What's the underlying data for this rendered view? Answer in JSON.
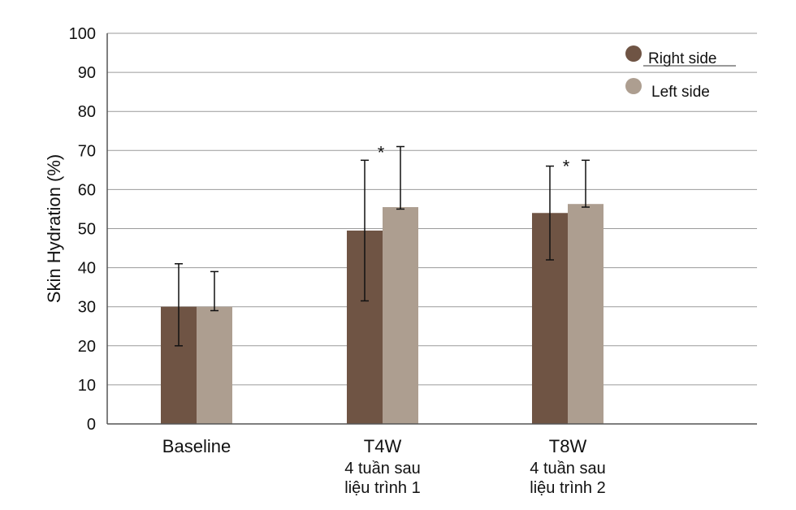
{
  "chart_data": {
    "type": "bar",
    "ylabel": "Skin Hydration (%)",
    "ylim": [
      0,
      100
    ],
    "yticks": [
      0,
      10,
      20,
      30,
      40,
      50,
      60,
      70,
      80,
      90,
      100
    ],
    "grid": true,
    "legend_position": "top-right",
    "categories": [
      {
        "label": "Baseline",
        "sublabel": [
          "",
          ""
        ],
        "significance": ""
      },
      {
        "label": "T4W",
        "sublabel": [
          "4 tuần sau",
          "liệu trình 1"
        ],
        "significance": "*"
      },
      {
        "label": "T8W",
        "sublabel": [
          "4 tuần sau",
          "liệu trình 2"
        ],
        "significance": "*"
      }
    ],
    "series": [
      {
        "name": "Right side",
        "color": "#6f5444",
        "values": [
          30,
          49.5,
          54
        ],
        "error_low": [
          20,
          31.5,
          42
        ],
        "error_high": [
          41,
          67.5,
          66
        ]
      },
      {
        "name": "Left side",
        "color": "#ad9e90",
        "values": [
          30,
          55.5,
          56.3
        ],
        "error_low": [
          29,
          55,
          55.5
        ],
        "error_high": [
          39,
          71,
          67.5
        ]
      }
    ]
  }
}
